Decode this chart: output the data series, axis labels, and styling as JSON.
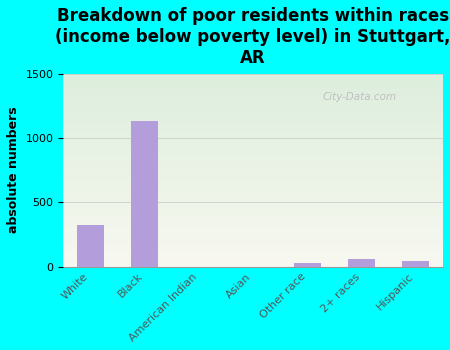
{
  "title": "Breakdown of poor residents within races\n(income below poverty level) in Stuttgart,\nAR",
  "categories": [
    "White",
    "Black",
    "American Indian",
    "Asian",
    "Other race",
    "2+ races",
    "Hispanic"
  ],
  "values": [
    320,
    1130,
    0,
    0,
    30,
    55,
    45
  ],
  "bar_color": "#b39ddb",
  "ylabel": "absolute numbers",
  "ylim": [
    0,
    1500
  ],
  "yticks": [
    0,
    500,
    1000,
    1500
  ],
  "background_outer": "#00ffff",
  "grad_top_left": "#ddeedd",
  "grad_bottom_right": "#f8f8f0",
  "watermark": "City-Data.com",
  "title_fontsize": 12,
  "ylabel_fontsize": 9,
  "tick_fontsize": 8,
  "grid_color": "#cccccc",
  "tick_label_color": "#555555"
}
